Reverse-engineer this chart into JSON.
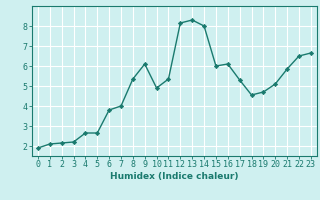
{
  "x": [
    0,
    1,
    2,
    3,
    4,
    5,
    6,
    7,
    8,
    9,
    10,
    11,
    12,
    13,
    14,
    15,
    16,
    17,
    18,
    19,
    20,
    21,
    22,
    23
  ],
  "y": [
    1.9,
    2.1,
    2.15,
    2.2,
    2.65,
    2.65,
    3.8,
    4.0,
    5.35,
    6.1,
    4.9,
    5.35,
    8.15,
    8.3,
    8.0,
    6.0,
    6.1,
    5.3,
    4.55,
    4.7,
    5.1,
    5.85,
    6.5,
    6.65
  ],
  "line_color": "#1a7a6e",
  "marker": "D",
  "marker_size": 2.2,
  "bg_color": "#cff0f0",
  "grid_color": "#ffffff",
  "grid_minor_color": "#e0f8f8",
  "xlabel": "Humidex (Indice chaleur)",
  "xlim": [
    -0.5,
    23.5
  ],
  "ylim": [
    1.5,
    9.0
  ],
  "yticks": [
    2,
    3,
    4,
    5,
    6,
    7,
    8
  ],
  "xticks": [
    0,
    1,
    2,
    3,
    4,
    5,
    6,
    7,
    8,
    9,
    10,
    11,
    12,
    13,
    14,
    15,
    16,
    17,
    18,
    19,
    20,
    21,
    22,
    23
  ],
  "tick_color": "#1a7a6e",
  "label_fontsize": 6.5,
  "tick_fontsize": 6.0,
  "line_width": 1.0
}
